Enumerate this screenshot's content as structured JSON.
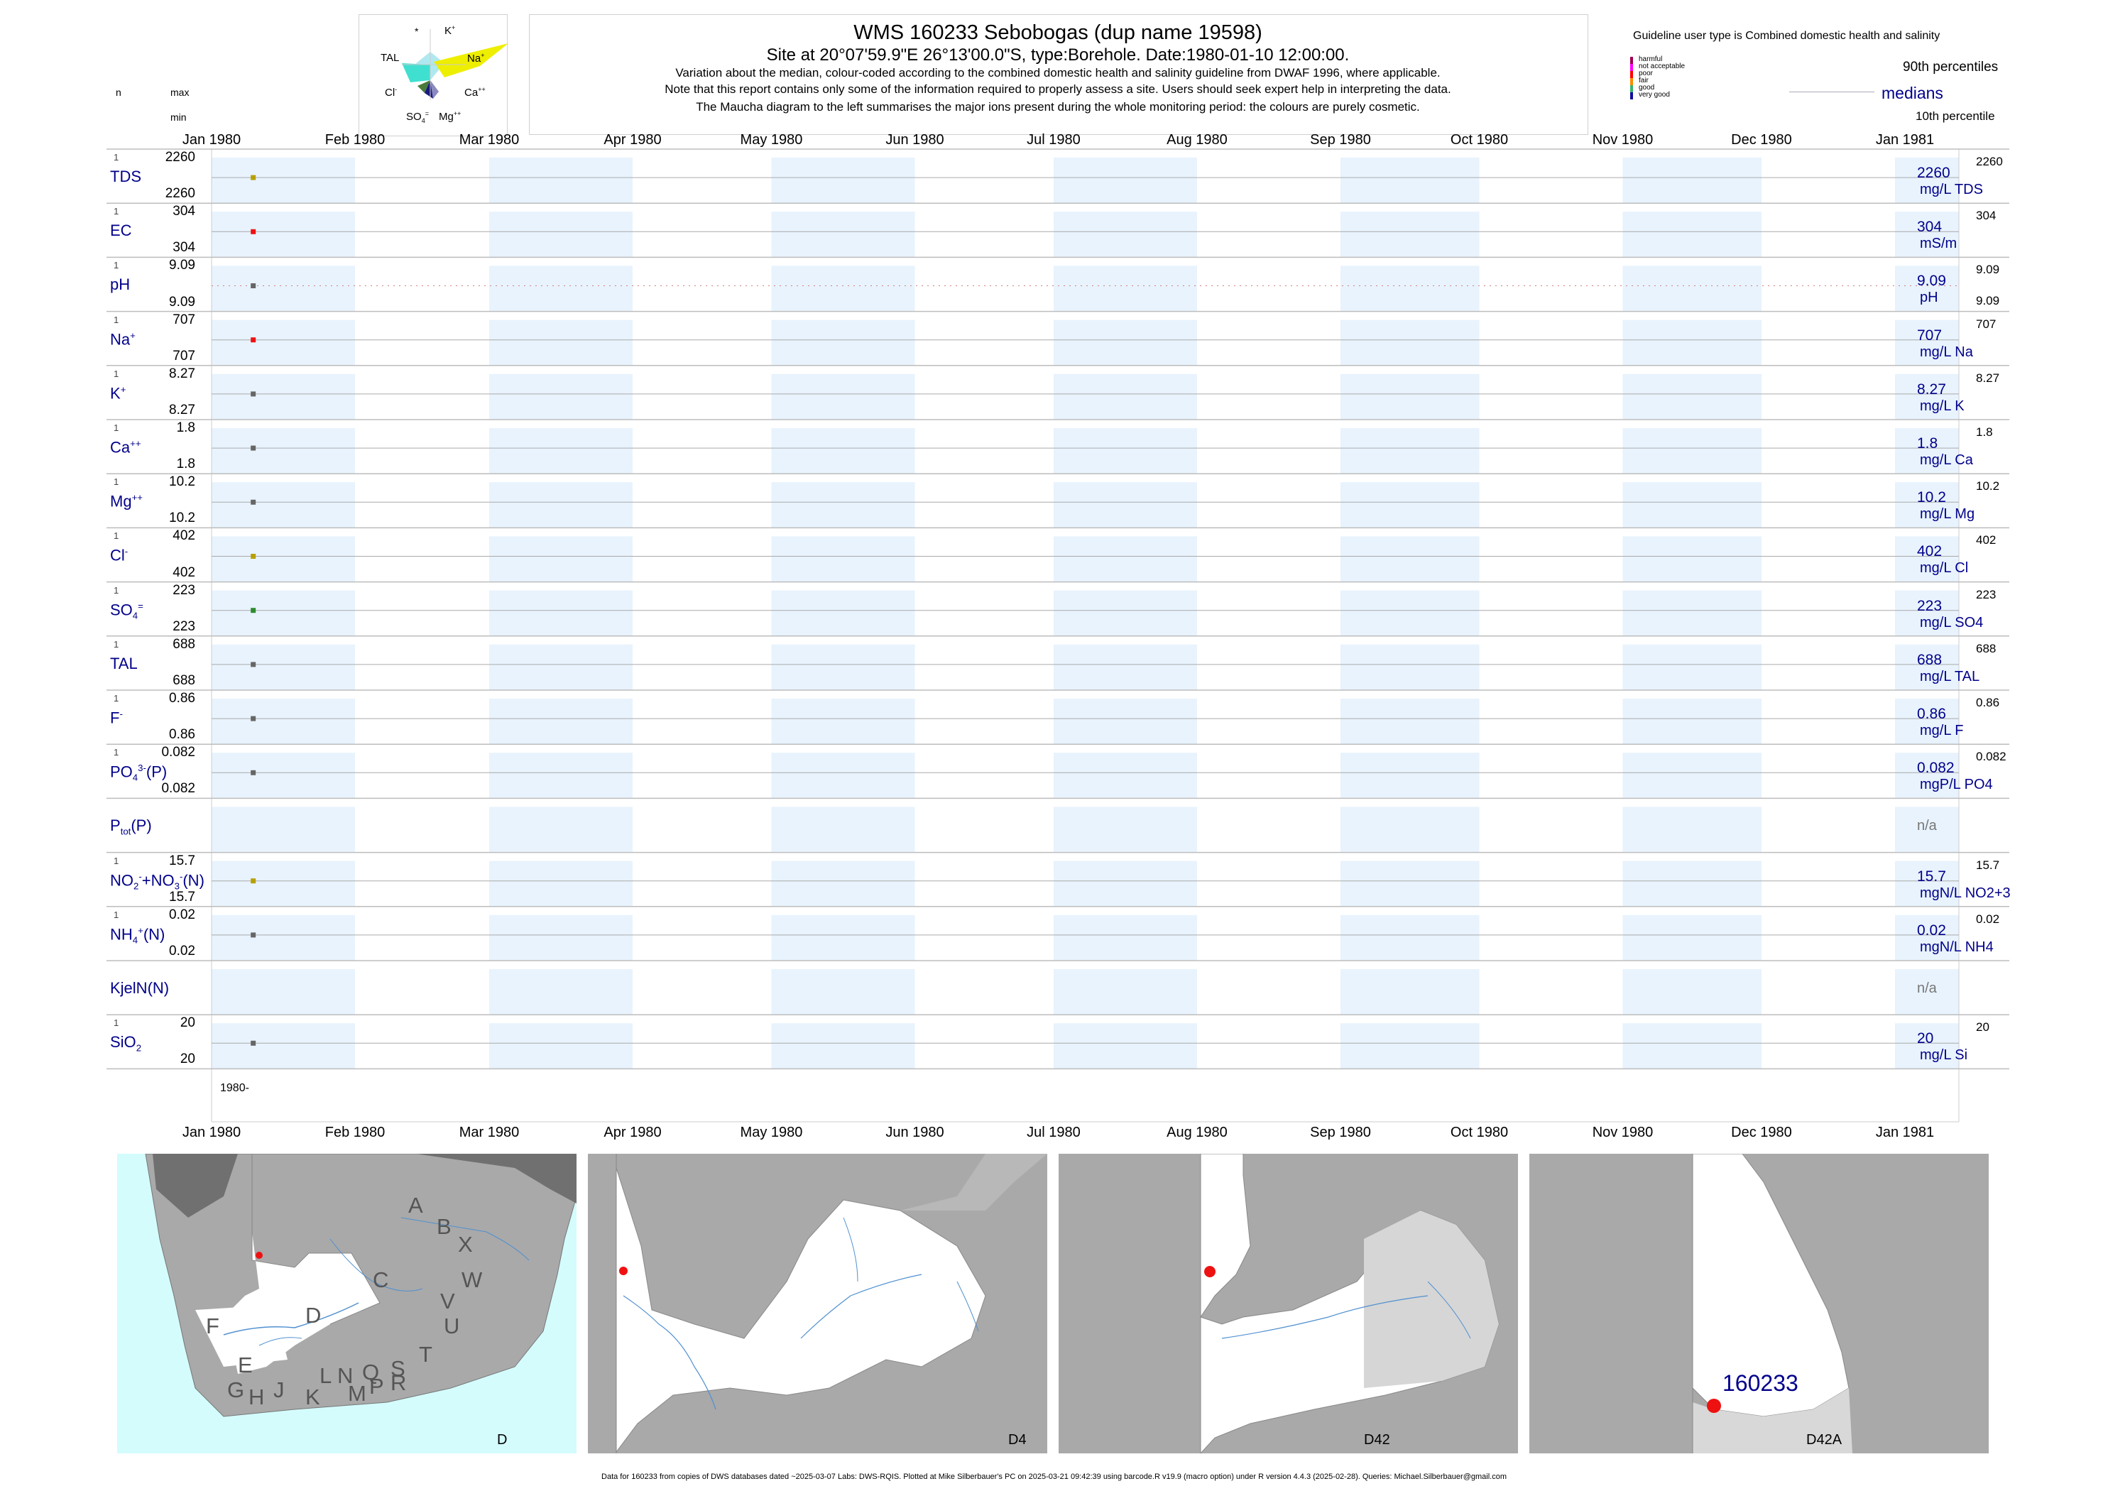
{
  "header": {
    "title": "WMS 160233  Sebobogas (dup name 19598)",
    "subtitle": "Site at 20°07'59.9\"E 26°13'00.0\"S, type:Borehole. Date:1980-01-10 12:00:00.",
    "note1": "Variation about the median,  colour-coded according to the combined domestic health and salinity guideline from DWAF 1996, where applicable.",
    "note2": "Note that this report contains only some of the information required to properly assess a site. Users should seek expert help in interpreting the data.",
    "note3": "The Maucha diagram to the left summarises the major ions present during the whole monitoring period: the colours are purely cosmetic."
  },
  "left_header": {
    "n": "n",
    "max": "max",
    "min": "min"
  },
  "maucha": {
    "labels": [
      "*",
      "K+",
      "TAL",
      "Na+",
      "Cl-",
      "Ca++",
      "SO4=",
      "Mg++"
    ],
    "colors": {
      "tal": "#40e0d0",
      "na": "#eeee00",
      "cl": "#4a7a3a",
      "so4": "#1a1a80",
      "mg": "#8a8ac0",
      "center": "#b0e8f0"
    }
  },
  "guideline": {
    "title": "Guideline user type is Combined domestic health and salinity",
    "classes": [
      {
        "label": "harmful",
        "color": "#a00050"
      },
      {
        "label": "not acceptable",
        "color": "#ff00ff"
      },
      {
        "label": "poor",
        "color": "#ff0000"
      },
      {
        "label": "fair",
        "color": "#ff8c00"
      },
      {
        "label": "good",
        "color": "#3cb371"
      },
      {
        "label": "very good",
        "color": "#1010a0"
      }
    ],
    "p90": "90th percentiles",
    "medians": "medians",
    "p10": "10th percentile"
  },
  "chart_data": {
    "type": "scatter",
    "x_range": [
      "1980-01-01",
      "1981-01-01"
    ],
    "x_ticks": [
      "Jan 1980",
      "Feb 1980",
      "Mar 1980",
      "Apr 1980",
      "May 1980",
      "Jun 1980",
      "Jul 1980",
      "Aug 1980",
      "Sep 1980",
      "Oct 1980",
      "Nov 1980",
      "Dec 1980",
      "Jan 1981"
    ],
    "sample_date": "1980-01-10",
    "year_label": "1980-",
    "rows": [
      {
        "name": "TDS",
        "n": "1",
        "max": "2260",
        "min": "2260",
        "value": 2260,
        "value_label": "2260",
        "unit": "mg/L TDS",
        "p90": "2260",
        "p10": "",
        "color": "#b8a000",
        "pname": "TDS"
      },
      {
        "name": "EC",
        "n": "1",
        "max": "304",
        "min": "304",
        "value": 304,
        "value_label": "304",
        "unit": "mS/m",
        "p90": "304",
        "p10": "",
        "color": "#ee1111",
        "pname": "EC"
      },
      {
        "name": "pH",
        "n": "1",
        "max": "9.09",
        "min": "9.09",
        "value": 9.09,
        "value_label": "9.09",
        "unit": "pH",
        "p90": "9.09",
        "p10": "9.09",
        "color": "#666666",
        "pname": "pH"
      },
      {
        "name": "Na+",
        "n": "1",
        "max": "707",
        "min": "707",
        "value": 707,
        "value_label": "707",
        "unit": "mg/L Na",
        "p90": "707",
        "p10": "",
        "color": "#ee1111",
        "pname": "Na"
      },
      {
        "name": "K+",
        "n": "1",
        "max": "8.27",
        "min": "8.27",
        "value": 8.27,
        "value_label": "8.27",
        "unit": "mg/L K",
        "p90": "8.27",
        "p10": "",
        "color": "#666666",
        "pname": "K"
      },
      {
        "name": "Ca++",
        "n": "1",
        "max": "1.8",
        "min": "1.8",
        "value": 1.8,
        "value_label": "1.8",
        "unit": "mg/L Ca",
        "p90": "1.8",
        "p10": "",
        "color": "#666666",
        "pname": "Ca"
      },
      {
        "name": "Mg++",
        "n": "1",
        "max": "10.2",
        "min": "10.2",
        "value": 10.2,
        "value_label": "10.2",
        "unit": "mg/L Mg",
        "p90": "10.2",
        "p10": "",
        "color": "#666666",
        "pname": "Mg"
      },
      {
        "name": "Cl-",
        "n": "1",
        "max": "402",
        "min": "402",
        "value": 402,
        "value_label": "402",
        "unit": "mg/L Cl",
        "p90": "402",
        "p10": "",
        "color": "#b8a000",
        "pname": "Cl"
      },
      {
        "name": "SO4=",
        "n": "1",
        "max": "223",
        "min": "223",
        "value": 223,
        "value_label": "223",
        "unit": "mg/L SO4",
        "p90": "223",
        "p10": "",
        "color": "#2e8b2e",
        "pname": "SO4"
      },
      {
        "name": "TAL",
        "n": "1",
        "max": "688",
        "min": "688",
        "value": 688,
        "value_label": "688",
        "unit": "mg/L TAL",
        "p90": "688",
        "p10": "",
        "color": "#666666",
        "pname": "TAL"
      },
      {
        "name": "F-",
        "n": "1",
        "max": "0.86",
        "min": "0.86",
        "value": 0.86,
        "value_label": "0.86",
        "unit": "mg/L F",
        "p90": "0.86",
        "p10": "",
        "color": "#666666",
        "pname": "F"
      },
      {
        "name": "PO43-(P)",
        "n": "1",
        "max": "0.082",
        "min": "0.082",
        "value": 0.082,
        "value_label": "0.082",
        "unit": "mgP/L PO4",
        "p90": "0.082",
        "p10": "",
        "color": "#666666",
        "pname": "PO4"
      },
      {
        "name": "Ptot(P)",
        "n": "",
        "max": "",
        "min": "",
        "value": null,
        "value_label": "n/a",
        "unit": "",
        "p90": "",
        "p10": "",
        "color": "",
        "pname": "Ptot"
      },
      {
        "name": "NO2-+NO3-(N)",
        "n": "1",
        "max": "15.7",
        "min": "15.7",
        "value": 15.7,
        "value_label": "15.7",
        "unit": "mgN/L NO2+3",
        "p90": "15.7",
        "p10": "",
        "color": "#b8a000",
        "pname": "NO23"
      },
      {
        "name": "NH4+(N)",
        "n": "1",
        "max": "0.02",
        "min": "0.02",
        "value": 0.02,
        "value_label": "0.02",
        "unit": "mgN/L NH4",
        "p90": "0.02",
        "p10": "",
        "color": "#666666",
        "pname": "NH4"
      },
      {
        "name": "KjelN(N)",
        "n": "",
        "max": "",
        "min": "",
        "value": null,
        "value_label": "n/a",
        "unit": "",
        "p90": "",
        "p10": "",
        "color": "",
        "pname": "Kjel"
      },
      {
        "name": "SiO2",
        "n": "1",
        "max": "20",
        "min": "20",
        "value": 20,
        "value_label": "20",
        "unit": "mg/L Si",
        "p90": "20",
        "p10": "",
        "color": "#666666",
        "pname": "Si"
      }
    ]
  },
  "maps": {
    "panels": [
      "D",
      "D4",
      "D42",
      "D42A"
    ],
    "region_letters": [
      "A",
      "B",
      "X",
      "C",
      "W",
      "D",
      "V",
      "U",
      "F",
      "T",
      "E",
      "L",
      "N",
      "Q",
      "S",
      "R",
      "G",
      "H",
      "J",
      "K",
      "M",
      "P"
    ],
    "site_label": "160233",
    "colors": {
      "sea": "#d4fcfc",
      "land": "#a9a9a9",
      "basin": "#ffffff",
      "river": "#5090d0",
      "site": "#ee1111"
    }
  },
  "footer": "Data for 160233 from copies of DWS databases dated ~2025-03-07 Labs: DWS-RQIS. Plotted at Mike Silberbauer's PC on 2025-03-21 09:42:39 using barcode.R v19.9 (macro option) under R version 4.4.3 (2025-02-28). Queries: Michael.Silberbauer@gmail.com"
}
